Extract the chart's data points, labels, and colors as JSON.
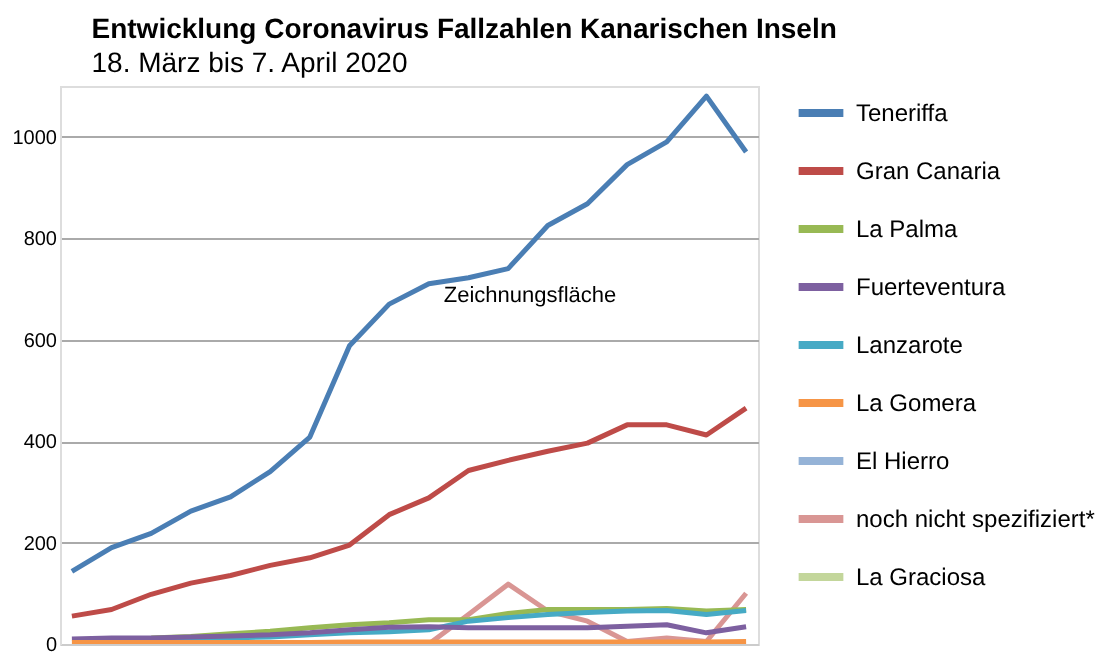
{
  "chart_data": {
    "type": "line",
    "title": "Entwicklung Coronavirus Fallzahlen Kanarischen Inseln",
    "subtitle": "18. März bis 7. April 2020",
    "categories": [
      null,
      null,
      null,
      null,
      null,
      null,
      null,
      null,
      null,
      null,
      null,
      null,
      null,
      null,
      null,
      null,
      null,
      null
    ],
    "series": [
      {
        "name": "Teneriffa",
        "color": "#4a7eb4",
        "values": [
          143,
          190,
          218,
          262,
          290,
          340,
          408,
          588,
          670,
          710,
          722,
          740,
          825,
          868,
          945,
          990,
          1080,
          970
        ]
      },
      {
        "name": "Gran Canaria",
        "color": "#be4b48",
        "values": [
          55,
          68,
          98,
          120,
          135,
          155,
          170,
          195,
          255,
          288,
          342,
          362,
          380,
          396,
          432,
          432,
          412,
          465
        ]
      },
      {
        "name": "La Palma",
        "color": "#98b954",
        "values": [
          null,
          null,
          12,
          15,
          20,
          25,
          32,
          38,
          42,
          48,
          48,
          60,
          68,
          68,
          68,
          70,
          65,
          68
        ]
      },
      {
        "name": "Fuerteventura",
        "color": "#7d60a0",
        "values": [
          10,
          12,
          12,
          14,
          16,
          18,
          22,
          28,
          33,
          34,
          32,
          32,
          32,
          32,
          35,
          38,
          22,
          34
        ]
      },
      {
        "name": "Lanzarote",
        "color": "#46aac5",
        "values": [
          null,
          null,
          8,
          10,
          12,
          14,
          18,
          22,
          24,
          28,
          45,
          52,
          58,
          62,
          65,
          66,
          58,
          66
        ]
      },
      {
        "name": "La Gomera",
        "color": "#f69546",
        "values": [
          3,
          3,
          3,
          3,
          3,
          3,
          3,
          4,
          4,
          4,
          4,
          4,
          4,
          4,
          4,
          4,
          4,
          5
        ]
      },
      {
        "name": "El Hierro",
        "color": "#95b3d7",
        "values": [
          null,
          null,
          null,
          null,
          null,
          null,
          null,
          null,
          null,
          null,
          null,
          null,
          null,
          null,
          null,
          null,
          null,
          null
        ]
      },
      {
        "name": "noch nicht spezifiziert*",
        "color": "#d99694",
        "values": [
          null,
          null,
          null,
          null,
          null,
          null,
          null,
          null,
          null,
          0,
          58,
          118,
          65,
          45,
          5,
          12,
          5,
          100
        ]
      },
      {
        "name": "La Graciosa",
        "color": "#c3d69b",
        "values": [
          null,
          null,
          null,
          null,
          null,
          null,
          null,
          null,
          null,
          null,
          null,
          null,
          null,
          null,
          null,
          null,
          null,
          null
        ]
      }
    ],
    "ylim": [
      0,
      1100
    ],
    "yticks": [
      0,
      200,
      400,
      600,
      800,
      1000
    ],
    "grid": "y",
    "legend": "right",
    "tick_labels": "y",
    "line_style": "solid",
    "marker": "none",
    "annotations": [
      "Zeichnungsfläche"
    ]
  }
}
